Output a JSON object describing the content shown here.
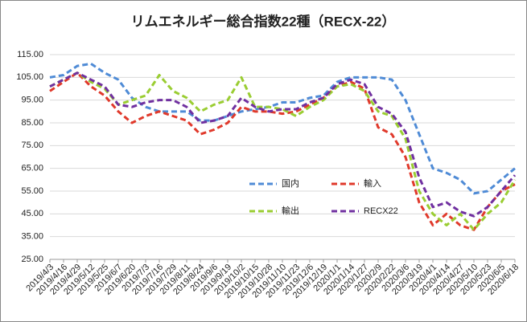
{
  "chart_data": {
    "type": "line",
    "title": "リムエネルギー総合指数22種（RECX-22）",
    "categories": [
      "2019/4/3",
      "2019/4/16",
      "2019/4/29",
      "2019/5/12",
      "2019/5/25",
      "2019/6/7",
      "2019/6/20",
      "2019/7/3",
      "2019/7/16",
      "2019/7/29",
      "2019/8/11",
      "2019/8/24",
      "2019/9/6",
      "2019/9/19",
      "2019/10/2",
      "2019/10/15",
      "2019/10/28",
      "2019/11/10",
      "2019/11/23",
      "2019/12/6",
      "2019/12/19",
      "2020/1/1",
      "2020/1/14",
      "2020/1/27",
      "2020/2/9",
      "2020/2/22",
      "2020/3/6",
      "2020/3/19",
      "2020/4/1",
      "2020/4/14",
      "2020/4/27",
      "2020/5/10",
      "2020/5/23",
      "2020/6/5",
      "2020/6/18"
    ],
    "series": [
      {
        "name": "国内",
        "color": "#4f8bd6",
        "values": [
          105,
          106,
          110,
          111,
          107,
          104,
          96,
          92,
          90,
          90,
          90,
          86,
          86,
          88,
          90,
          91,
          92,
          94,
          94,
          96,
          97,
          103,
          105,
          105,
          105,
          104,
          95,
          80,
          65,
          63,
          60,
          54,
          55,
          60,
          65
        ]
      },
      {
        "name": "輸入",
        "color": "#e0392b",
        "values": [
          99,
          103,
          107,
          101,
          97,
          90,
          85,
          88,
          90,
          88,
          86,
          80,
          82,
          85,
          92,
          90,
          90,
          89,
          90,
          93,
          96,
          101,
          103,
          100,
          83,
          80,
          70,
          50,
          40,
          45,
          40,
          38,
          48,
          55,
          58
        ]
      },
      {
        "name": "輸出",
        "color": "#9acd32",
        "values": [
          101,
          104,
          107,
          103,
          100,
          93,
          95,
          97,
          106,
          99,
          96,
          90,
          93,
          95,
          105,
          92,
          92,
          91,
          88,
          92,
          95,
          101,
          102,
          99,
          90,
          88,
          78,
          55,
          45,
          40,
          45,
          38,
          45,
          50,
          60
        ]
      },
      {
        "name": "RECX22",
        "color": "#7030a0",
        "values": [
          101,
          104,
          107,
          104,
          101,
          93,
          92,
          94,
          95,
          95,
          92,
          85,
          86,
          88,
          96,
          92,
          90,
          91,
          91,
          94,
          96,
          102,
          104,
          102,
          92,
          89,
          81,
          61,
          48,
          50,
          46,
          44,
          48,
          55,
          62
        ]
      }
    ],
    "ylim": [
      25,
      115
    ],
    "yticks": [
      {
        "value": 25,
        "label": "25.00"
      },
      {
        "value": 35,
        "label": "35.00"
      },
      {
        "value": 45,
        "label": "45.00"
      },
      {
        "value": 55,
        "label": "55.00"
      },
      {
        "value": 65,
        "label": "65.00"
      },
      {
        "value": 75,
        "label": "75.00"
      },
      {
        "value": 85,
        "label": "85.00"
      },
      {
        "value": 95,
        "label": "95.00"
      },
      {
        "value": 105,
        "label": "105.00"
      },
      {
        "value": 115,
        "label": "115.00"
      }
    ],
    "grid": true
  }
}
